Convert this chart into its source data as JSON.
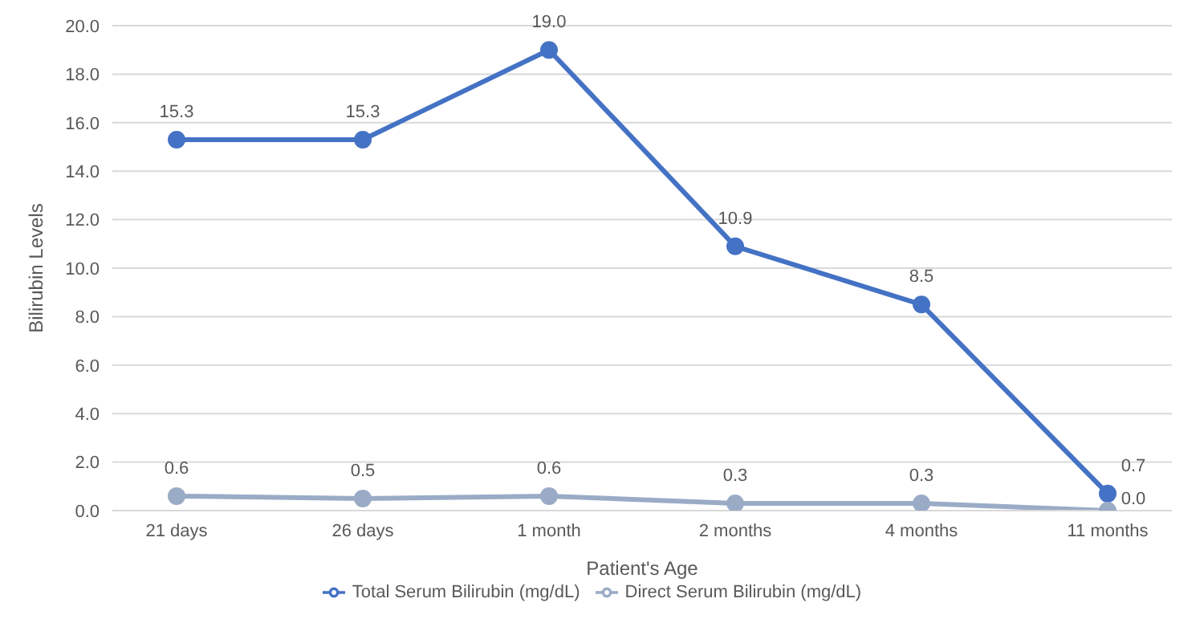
{
  "chart_data": {
    "type": "line",
    "xlabel": "Patient's Age",
    "ylabel": "Bilirubin Levels",
    "categories": [
      "21 days",
      "26 days",
      "1 month",
      "2 months",
      "4 months",
      "11 months"
    ],
    "series": [
      {
        "name": "Total Serum Bilirubin (mg/dL)",
        "color": "#4472c4",
        "values": [
          15.3,
          15.3,
          19.0,
          10.9,
          8.5,
          0.7
        ],
        "value_labels": [
          "15.3",
          "15.3",
          "19.0",
          "10.9",
          "8.5",
          "0.7"
        ]
      },
      {
        "name": "Direct Serum Bilirubin (mg/dL)",
        "color": "#9aabc6",
        "values": [
          0.6,
          0.5,
          0.6,
          0.3,
          0.3,
          0.0
        ],
        "value_labels": [
          "0.6",
          "0.5",
          "0.6",
          "0.3",
          "0.3",
          "0.0"
        ]
      }
    ],
    "ylim": [
      0,
      20
    ],
    "yticks": [
      {
        "value": 0,
        "label": "0.0"
      },
      {
        "value": 2,
        "label": "2.0"
      },
      {
        "value": 4,
        "label": "4.0"
      },
      {
        "value": 6,
        "label": "6.0"
      },
      {
        "value": 8,
        "label": "8.0"
      },
      {
        "value": 10,
        "label": "10.0"
      },
      {
        "value": 12,
        "label": "12.0"
      },
      {
        "value": 14,
        "label": "14.0"
      },
      {
        "value": 16,
        "label": "16.0"
      },
      {
        "value": 18,
        "label": "18.0"
      },
      {
        "value": 20,
        "label": "20.0"
      }
    ],
    "grid": "y",
    "legend": "bottom",
    "marker": "circle",
    "line_style": "solid"
  }
}
